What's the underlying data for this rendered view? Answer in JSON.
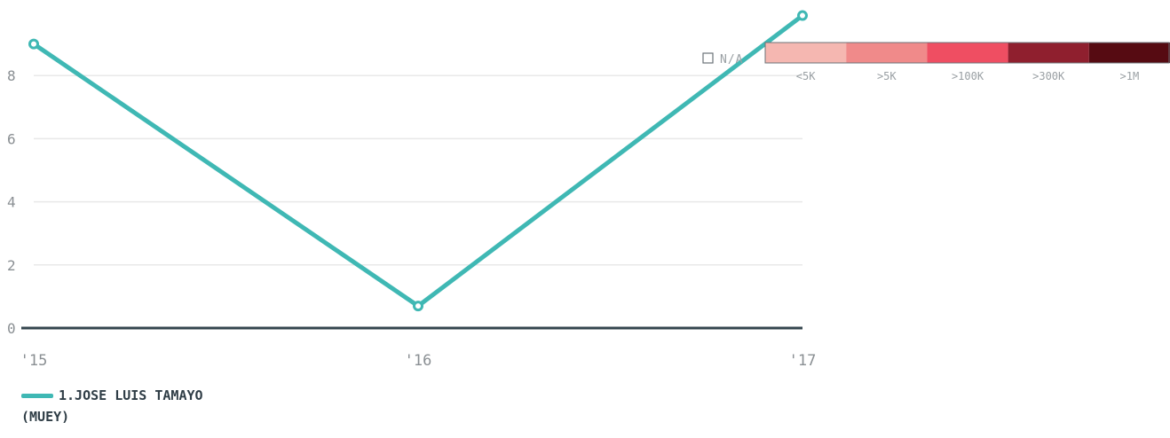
{
  "chart_data": {
    "type": "line",
    "title": "",
    "xlabel": "",
    "ylabel": "",
    "categories": [
      "'15",
      "'16",
      "'17"
    ],
    "series": [
      {
        "name": "1.JOSE LUIS TAMAYO",
        "name_suffix": "(MUEY)",
        "color": "#3fb8b4",
        "values": [
          9.0,
          0.7,
          9.9
        ]
      }
    ],
    "ylim": [
      0,
      10
    ],
    "yticks": [
      "0",
      "2",
      "4",
      "6",
      "8"
    ],
    "ytick_values": [
      0,
      2,
      4,
      6,
      8
    ],
    "grid": true,
    "legend_placement": "bottom-left"
  },
  "color_scale": {
    "na_label": "N/A",
    "bins": [
      {
        "label": "<5K",
        "color": "#f5b7b1"
      },
      {
        "label": ">5K",
        "color": "#f08a8a"
      },
      {
        "label": ">100K",
        "color": "#ef4e62"
      },
      {
        "label": ">300K",
        "color": "#8f1f2e"
      },
      {
        "label": ">1M",
        "color": "#560b12"
      }
    ]
  },
  "colors": {
    "axis": "#34454e",
    "grid": "#e8e8e8",
    "text": "#8a8f93"
  }
}
